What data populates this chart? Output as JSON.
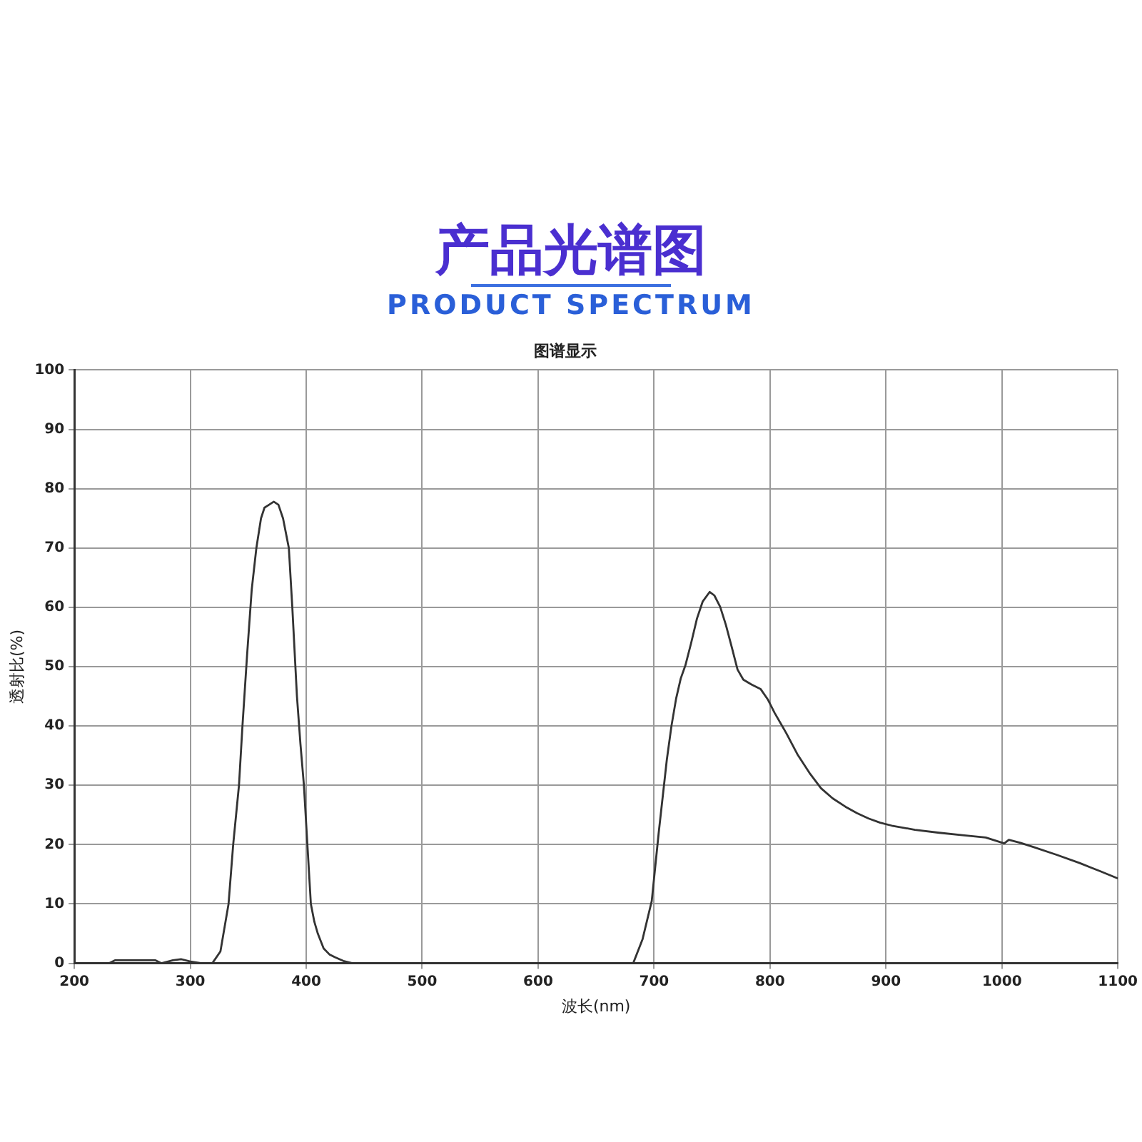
{
  "chart_data": {
    "type": "line",
    "title": "产品光谱图",
    "subtitle": "PRODUCT SPECTRUM",
    "annotations": [
      "图谱显示"
    ],
    "xlabel": "波长(nm)",
    "ylabel": "透射比(%)",
    "xlim": [
      200,
      1100
    ],
    "xticks": [
      200,
      300,
      400,
      500,
      600,
      700,
      800,
      900,
      1000,
      1100
    ],
    "ylim": [
      0,
      100
    ],
    "yticks": [
      0,
      10,
      20,
      30,
      40,
      50,
      60,
      70,
      80,
      90,
      100
    ],
    "grid": true,
    "marker": "none",
    "line_style": "solid",
    "series": [
      {
        "color": "#333333",
        "x": [
          200,
          230,
          235,
          270,
          275,
          285,
          292,
          300,
          310,
          319,
          326,
          333,
          337,
          342,
          345,
          349,
          353,
          357,
          361,
          364,
          368,
          372,
          376,
          380,
          383,
          385,
          388,
          392,
          395,
          398,
          401,
          404,
          407,
          410,
          415,
          420,
          425,
          432,
          440,
          460,
          500,
          600,
          682,
          690,
          698,
          704,
          711,
          715,
          719,
          723,
          727,
          732,
          737,
          742,
          748,
          752,
          757,
          762,
          767,
          772,
          777,
          784,
          792,
          798,
          804,
          814,
          824,
          834,
          844,
          854,
          865,
          875,
          885,
          895,
          905,
          925,
          946,
          966,
          986,
          1002,
          1006,
          1016,
          1027,
          1047,
          1067,
          1085,
          1100
        ],
        "values": [
          0,
          0,
          0.5,
          0.5,
          0,
          0.5,
          0.7,
          0.3,
          0,
          0,
          2,
          10,
          20,
          30,
          40,
          52,
          63,
          70,
          75,
          76.8,
          77.3,
          77.8,
          77.3,
          75,
          72,
          70,
          60,
          45,
          37,
          30,
          20,
          10,
          7,
          5,
          2.5,
          1.5,
          1,
          0.4,
          0,
          0,
          0,
          0,
          0,
          4,
          10.5,
          22,
          34.3,
          40,
          44.6,
          48,
          50.2,
          54,
          58.1,
          61,
          62.6,
          62,
          60.1,
          57,
          53.3,
          49.5,
          47.8,
          47,
          46.2,
          44.5,
          42.2,
          38.8,
          35.1,
          32.1,
          29.5,
          27.8,
          26.4,
          25.3,
          24.4,
          23.7,
          23.2,
          22.5,
          22,
          21.6,
          21.2,
          20.2,
          20.8,
          20.3,
          19.6,
          18.3,
          16.9,
          15.5,
          14.3
        ]
      }
    ]
  }
}
